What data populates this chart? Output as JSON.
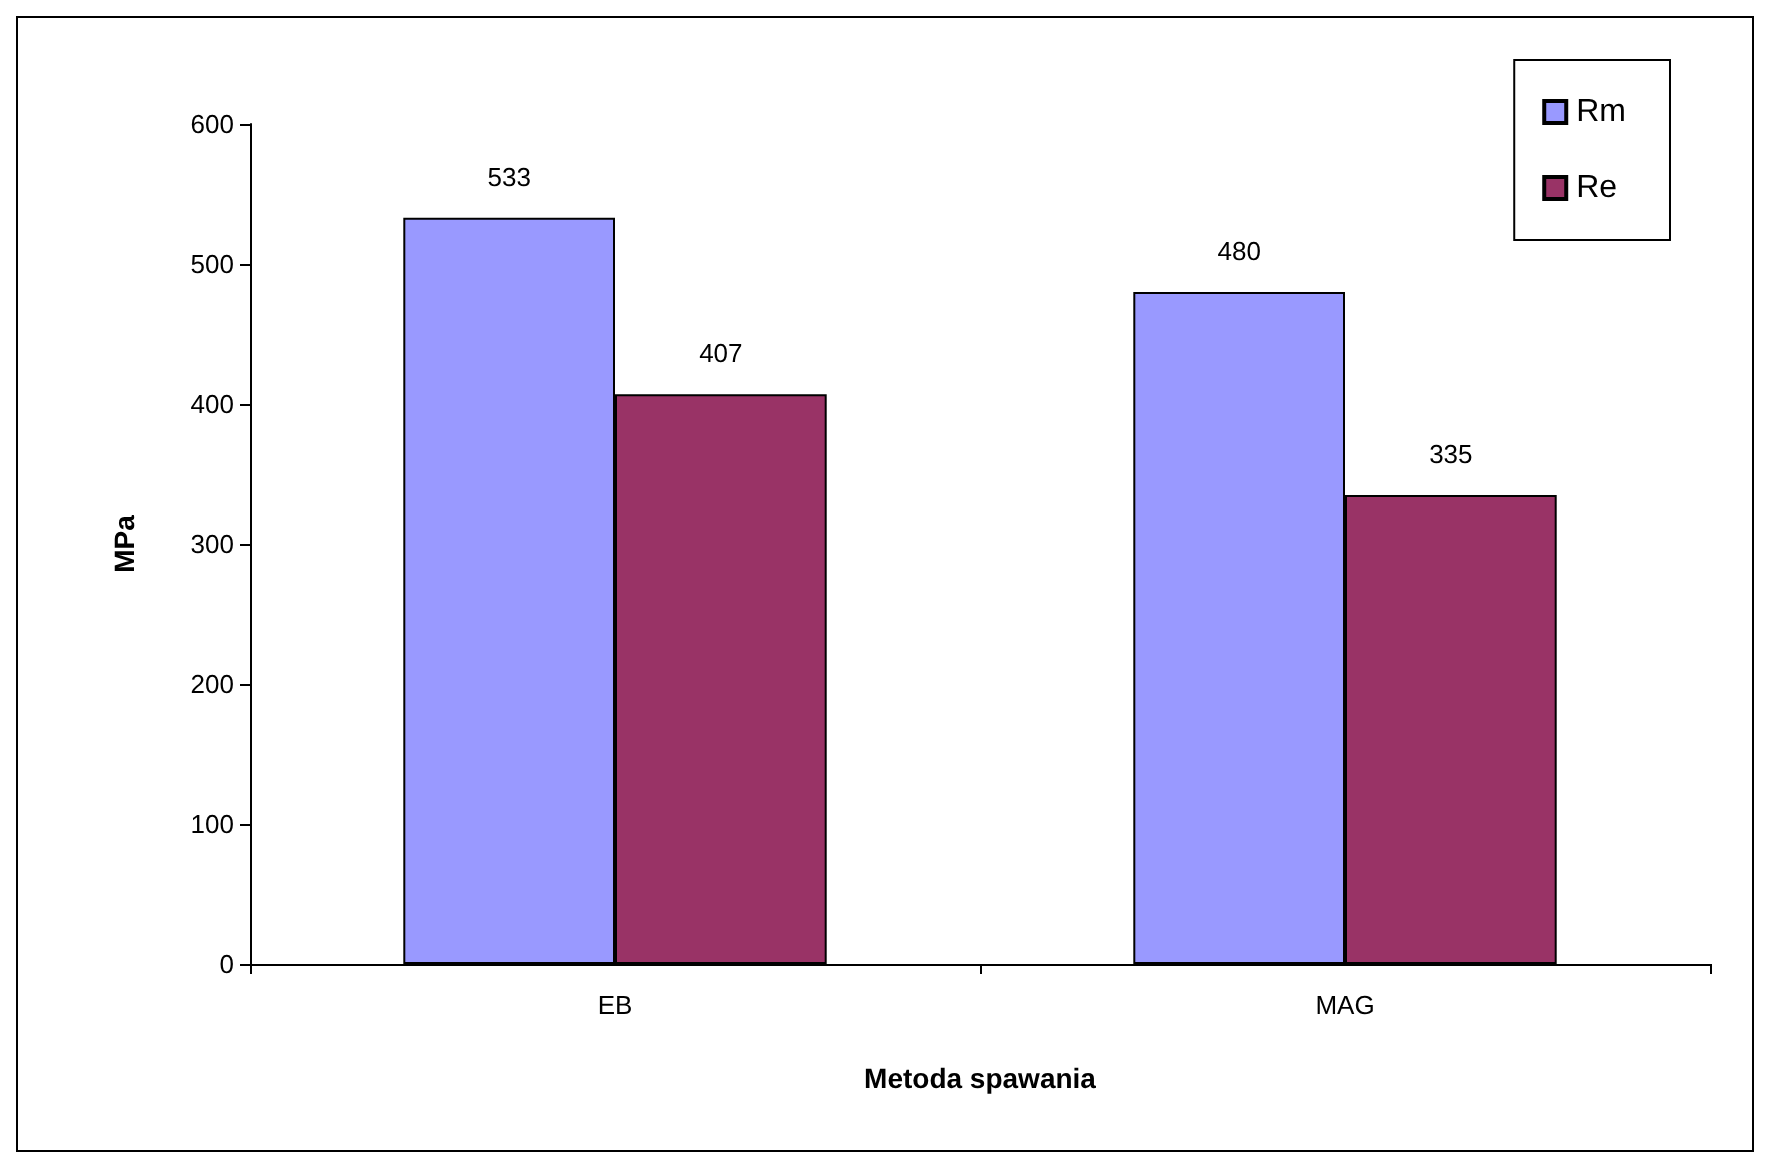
{
  "chart_data": {
    "type": "bar",
    "categories": [
      "EB",
      "MAG"
    ],
    "xlabel": "Metoda spawania",
    "ylabel": "MPa",
    "series": [
      {
        "name": "Rm",
        "color": "#9999ff",
        "values": [
          533,
          480
        ]
      },
      {
        "name": "Re",
        "color": "#993366",
        "values": [
          407,
          335
        ]
      }
    ],
    "ylim": [
      0,
      600
    ],
    "yticks": [
      0,
      100,
      200,
      300,
      400,
      500,
      600
    ],
    "grid": false,
    "legend": "top right",
    "data_labels": true
  }
}
